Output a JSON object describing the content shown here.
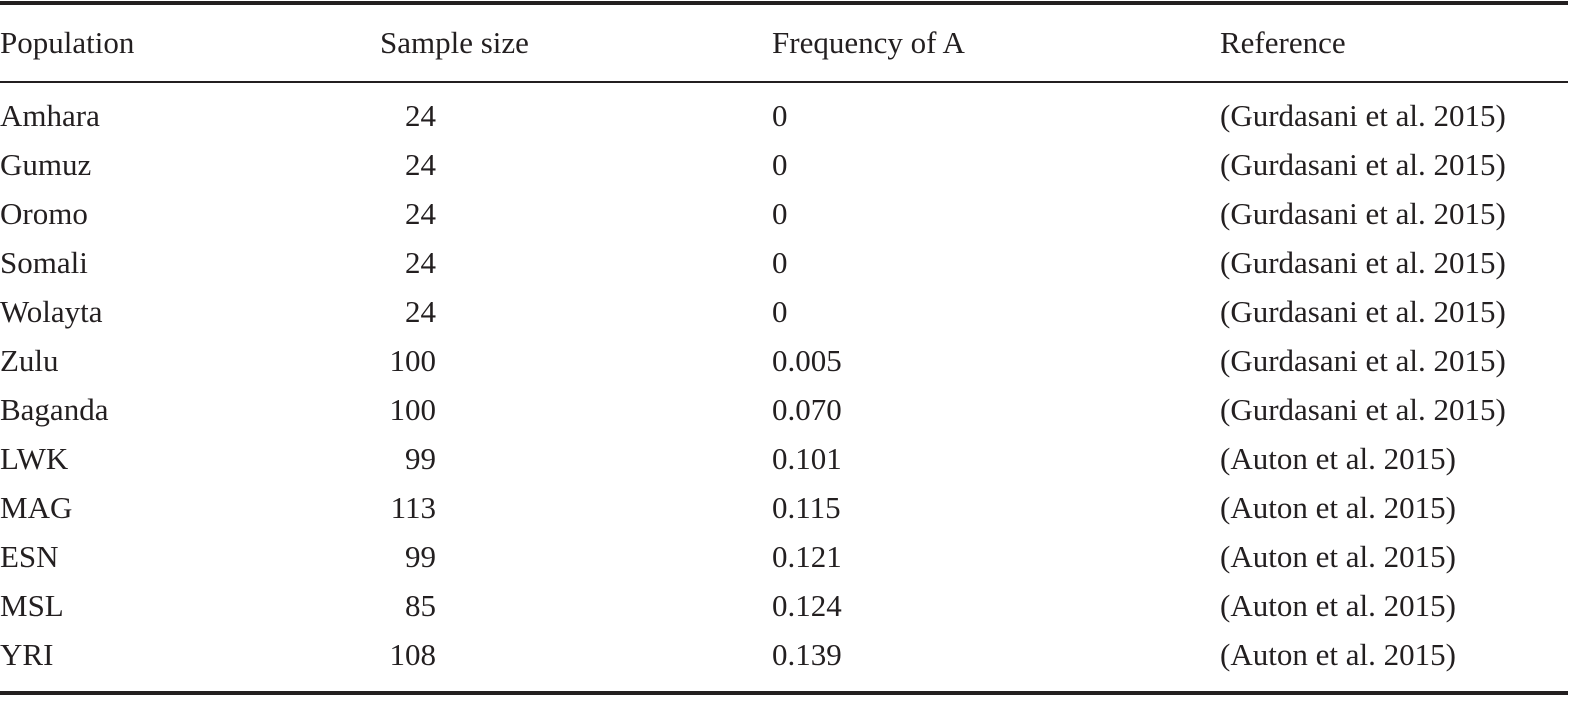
{
  "table": {
    "header": [
      "Population",
      "Sample size",
      "Frequency of A",
      "Reference"
    ],
    "rows": [
      [
        "Amhara",
        "24",
        "0",
        "(Gurdasani et al. 2015)"
      ],
      [
        "Gumuz",
        "24",
        "0",
        "(Gurdasani et al. 2015)"
      ],
      [
        "Oromo",
        "24",
        "0",
        "(Gurdasani et al. 2015)"
      ],
      [
        "Somali",
        "24",
        "0",
        "(Gurdasani et al. 2015)"
      ],
      [
        "Wolayta",
        "24",
        "0",
        "(Gurdasani et al. 2015)"
      ],
      [
        "Zulu",
        "100",
        "0.005",
        "(Gurdasani et al. 2015)"
      ],
      [
        "Baganda",
        "100",
        "0.070",
        "(Gurdasani et al. 2015)"
      ],
      [
        "LWK",
        "99",
        "0.101",
        "(Auton et al. 2015)"
      ],
      [
        "MAG",
        "113",
        "0.115",
        "(Auton et al. 2015)"
      ],
      [
        "ESN",
        "99",
        "0.121",
        "(Auton et al. 2015)"
      ],
      [
        "MSL",
        "85",
        "0.124",
        "(Auton et al. 2015)"
      ],
      [
        "YRI",
        "108",
        "0.139",
        "(Auton et al. 2015)"
      ]
    ]
  }
}
